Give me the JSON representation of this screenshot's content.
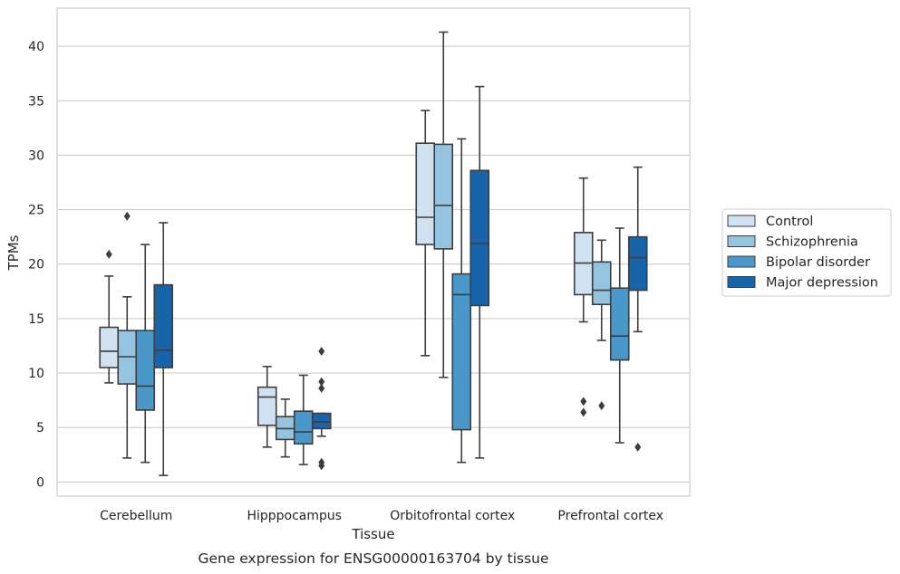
{
  "chart_data": {
    "type": "box",
    "caption": "Gene expression for ENSG00000163704 by tissue",
    "xlabel": "Tissue",
    "ylabel": "TPMs",
    "ylim": [
      -1.3,
      43.5
    ],
    "yticks": [
      0,
      5,
      10,
      15,
      20,
      25,
      30,
      35,
      40
    ],
    "grid": "horizontal",
    "legend_position": "right",
    "categories": [
      "Cerebellum",
      "Hipppocampus",
      "Orbitofrontal cortex",
      "Prefrontal cortex"
    ],
    "series": [
      {
        "name": "Control",
        "color": "#d0e1f2",
        "boxes": [
          {
            "whisker_low": 9.1,
            "q1": 10.5,
            "median": 12.0,
            "q3": 14.2,
            "whisker_high": 18.9,
            "outliers": [
              20.9
            ]
          },
          {
            "whisker_low": 3.2,
            "q1": 5.2,
            "median": 7.8,
            "q3": 8.7,
            "whisker_high": 10.6,
            "outliers": []
          },
          {
            "whisker_low": 11.6,
            "q1": 21.8,
            "median": 24.3,
            "q3": 31.1,
            "whisker_high": 34.1,
            "outliers": []
          },
          {
            "whisker_low": 14.7,
            "q1": 17.2,
            "median": 20.1,
            "q3": 22.9,
            "whisker_high": 27.9,
            "outliers": [
              7.4,
              6.4
            ]
          }
        ]
      },
      {
        "name": "Schizophrenia",
        "color": "#94c4df",
        "boxes": [
          {
            "whisker_low": 2.2,
            "q1": 9.0,
            "median": 11.5,
            "q3": 13.9,
            "whisker_high": 17.0,
            "outliers": [
              24.4
            ]
          },
          {
            "whisker_low": 2.3,
            "q1": 3.9,
            "median": 4.9,
            "q3": 6.0,
            "whisker_high": 7.6,
            "outliers": []
          },
          {
            "whisker_low": 9.6,
            "q1": 21.4,
            "median": 25.4,
            "q3": 31.0,
            "whisker_high": 41.3,
            "outliers": []
          },
          {
            "whisker_low": 13.0,
            "q1": 16.3,
            "median": 17.6,
            "q3": 20.2,
            "whisker_high": 22.2,
            "outliers": [
              7.0
            ]
          }
        ]
      },
      {
        "name": "Bipolar disorder",
        "color": "#4a98c9",
        "boxes": [
          {
            "whisker_low": 1.8,
            "q1": 6.6,
            "median": 8.8,
            "q3": 13.9,
            "whisker_high": 21.8,
            "outliers": []
          },
          {
            "whisker_low": 1.6,
            "q1": 3.5,
            "median": 4.6,
            "q3": 6.5,
            "whisker_high": 9.8,
            "outliers": []
          },
          {
            "whisker_low": 1.8,
            "q1": 4.8,
            "median": 17.2,
            "q3": 19.1,
            "whisker_high": 31.5,
            "outliers": []
          },
          {
            "whisker_low": 3.6,
            "q1": 11.2,
            "median": 13.4,
            "q3": 17.8,
            "whisker_high": 23.3,
            "outliers": []
          }
        ]
      },
      {
        "name": "Major depression",
        "color": "#1764ab",
        "boxes": [
          {
            "whisker_low": 0.6,
            "q1": 10.5,
            "median": 12.1,
            "q3": 18.1,
            "whisker_high": 23.8,
            "outliers": []
          },
          {
            "whisker_low": 4.2,
            "q1": 4.9,
            "median": 5.5,
            "q3": 6.3,
            "whisker_high": 6.3,
            "outliers": [
              12.0,
              9.2,
              8.6,
              1.8,
              1.5
            ]
          },
          {
            "whisker_low": 2.2,
            "q1": 16.2,
            "median": 21.9,
            "q3": 28.6,
            "whisker_high": 36.3,
            "outliers": []
          },
          {
            "whisker_low": 13.8,
            "q1": 17.6,
            "median": 20.6,
            "q3": 22.5,
            "whisker_high": 28.9,
            "outliers": [
              3.2
            ]
          }
        ]
      }
    ]
  }
}
